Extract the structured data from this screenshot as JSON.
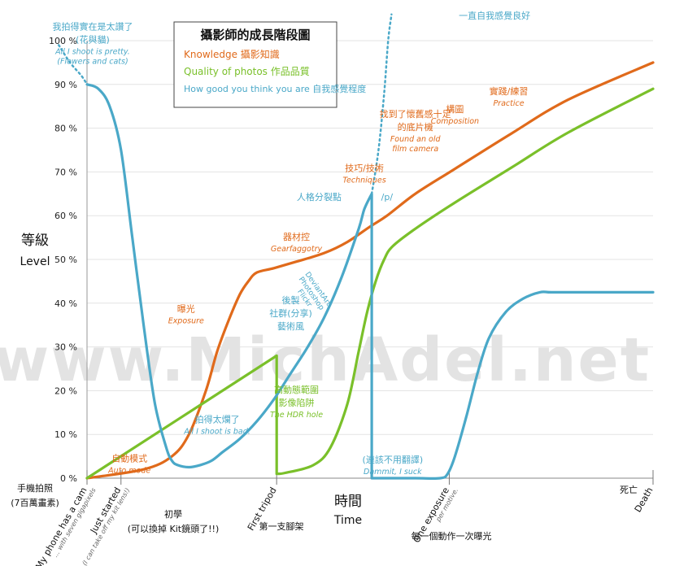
{
  "chart_data": {
    "type": "line",
    "title": "攝影師的成長階段圖",
    "legend": [
      {
        "name": "Knowledge 攝影知識",
        "color": "#e06a1b"
      },
      {
        "name": "Quality of photos 作品品質",
        "color": "#7ac02a"
      },
      {
        "name": "How good you think you are 自我感覺程度",
        "color": "#4aa8c8"
      }
    ],
    "legend_placement": "top-center",
    "ylabel_zh": "等級",
    "ylabel_en": "Level",
    "xlabel_zh": "時間",
    "xlabel_en": "Time",
    "ylim": [
      0,
      100
    ],
    "yticks": [
      "0 %",
      "10 %",
      "20 %",
      "30 %",
      "40 %",
      "50 %",
      "60 %",
      "70 %",
      "80 %",
      "90 %",
      "100 %"
    ],
    "xlim": [
      0,
      100
    ],
    "watermark": "www.MichAdel.net",
    "x_stages": [
      {
        "x": 0,
        "labels": [
          "手機拍照",
          "(7百萬畫素)"
        ],
        "rot_labels": [
          "My phone has a cam",
          "... with seven gigapixels"
        ]
      },
      {
        "x": 6,
        "labels": [
          "初學",
          "(可以換掉 Kit鏡頭了!!)"
        ],
        "rot_labels": [
          "Just started",
          "(I can take off my kit lens!)"
        ]
      },
      {
        "x": 33.5,
        "labels": [
          "第一支腳架"
        ],
        "rot_labels": [
          "First tripod"
        ]
      },
      {
        "x": 64,
        "labels": [
          "每一個動作一次曝光"
        ],
        "rot_labels": [
          "One exposure",
          "per motive."
        ]
      },
      {
        "x": 100,
        "labels": [
          "死亡"
        ],
        "rot_labels": [
          "Death"
        ]
      }
    ],
    "series": [
      {
        "name": "Knowledge 攝影知識",
        "color": "#e06a1b",
        "x": [
          0,
          10,
          15,
          18,
          21,
          23,
          25,
          27,
          28.5,
          30,
          33,
          37,
          42,
          46,
          50,
          53,
          58,
          65,
          75,
          85,
          100
        ],
        "y": [
          0,
          2,
          5,
          10,
          20,
          29,
          36,
          42,
          45,
          47,
          48,
          49.5,
          51.5,
          54,
          57.5,
          60,
          65,
          70.7,
          78.8,
          86.5,
          95
        ]
      },
      {
        "name": "Quality of photos 作品品質",
        "color": "#7ac02a",
        "x": [
          0,
          33.5,
          33.5,
          35,
          40,
          43,
          46,
          48,
          49.5,
          51,
          52.5,
          54,
          58,
          65,
          75,
          85,
          100
        ],
        "y": [
          0,
          28,
          1,
          1.2,
          3,
          7,
          17,
          29,
          38,
          45,
          50,
          53,
          57,
          63,
          71,
          79,
          89
        ]
      },
      {
        "name": "How good you think you are 自我感覺程度",
        "color": "#4aa8c8",
        "x": [
          0,
          2,
          4,
          6,
          8,
          10,
          12,
          14,
          15,
          16,
          18,
          20,
          22,
          24,
          27,
          30,
          33,
          36,
          39,
          42,
          45,
          48,
          49,
          50.3,
          50.3,
          52,
          58,
          62.4,
          63.7,
          65,
          67,
          69,
          71,
          74,
          77,
          80,
          82,
          87,
          100
        ],
        "y": [
          90,
          89,
          85,
          75,
          55,
          35,
          17,
          7,
          4,
          3,
          2.5,
          3,
          4,
          6,
          9,
          13,
          18,
          24,
          30,
          37,
          46,
          57,
          61.5,
          65,
          0,
          0,
          0,
          0,
          1,
          5,
          14,
          24,
          32,
          38,
          41,
          42.5,
          42.5,
          42.5,
          42.5
        ]
      }
    ],
    "dotted": [
      {
        "color": "#4aa8c8",
        "x": [
          -5,
          -3,
          -1,
          0
        ],
        "y": [
          99,
          95,
          92,
          90
        ]
      },
      {
        "color": "#4aa8c8",
        "x": [
          50.3,
          51.5,
          52.5,
          53.2,
          53.8
        ],
        "y": [
          65,
          75,
          88,
          100,
          106
        ]
      }
    ],
    "annotations": [
      {
        "series": 2,
        "x": 1,
        "y": 102.5,
        "lines": [
          "我拍得實在是太讚了",
          "(花與貓)"
        ],
        "italic": [
          "All I shoot is pretty.",
          "(Flowers and cats)"
        ]
      },
      {
        "series": 2,
        "x": 72,
        "y": 105,
        "lines": [
          "一直自我感覺良好"
        ],
        "italic": []
      },
      {
        "series": 2,
        "x": 41,
        "y": 63.6,
        "lines": [
          "人格分裂點"
        ],
        "italic": []
      },
      {
        "series": 2,
        "x": 53,
        "y": 63.6,
        "lines": [
          "/p/"
        ],
        "italic": []
      },
      {
        "series": 2,
        "x": 23,
        "y": 12.7,
        "lines": [
          "拍得太爛了"
        ],
        "italic": [
          "All I shoot is bad."
        ]
      },
      {
        "series": 2,
        "x": 54,
        "y": 3.5,
        "lines": [
          "(連該不用翻譯)"
        ],
        "italic": [
          "Dammit, I suck"
        ]
      },
      {
        "series": 0,
        "x": 17.5,
        "y": 38,
        "lines": [
          "曝光"
        ],
        "italic": [
          "Exposure"
        ]
      },
      {
        "series": 0,
        "x": 37,
        "y": 54.5,
        "lines": [
          "器材控"
        ],
        "italic": [
          "Gearfaggotry"
        ]
      },
      {
        "series": 0,
        "x": 49,
        "y": 70.2,
        "lines": [
          "技巧/技術"
        ],
        "italic": [
          "Techniques"
        ]
      },
      {
        "series": 0,
        "x": 58,
        "y": 82.5,
        "lines": [
          "找到了懷舊感十足",
          "的底片機"
        ],
        "italic": [
          "Found an old",
          "film camera"
        ]
      },
      {
        "series": 0,
        "x": 65,
        "y": 83.6,
        "lines": [
          "構圖"
        ],
        "italic": [
          "Composition"
        ]
      },
      {
        "series": 0,
        "x": 74.5,
        "y": 87.7,
        "lines": [
          "實踐/練習"
        ],
        "italic": [
          "Practice"
        ]
      },
      {
        "series": 0,
        "x": 7.5,
        "y": 3.8,
        "lines": [
          "自動模式"
        ],
        "italic": [
          "Auto mode"
        ]
      },
      {
        "series": 1,
        "x": 37,
        "y": 19.5,
        "lines": [
          "高動態範圍",
          "影像陷阱"
        ],
        "italic": [
          "The HDR hole"
        ]
      },
      {
        "series": 2,
        "x": 36,
        "y": 40,
        "lines": [
          "後製",
          "社群(分享)",
          "藝術風"
        ],
        "italic": []
      },
      {
        "series": 2,
        "x": 40.5,
        "y": 43,
        "lines": [
          "DeviantArt",
          "Photoshop",
          "Flickr"
        ],
        "italic": [],
        "rotate": 55
      }
    ]
  }
}
